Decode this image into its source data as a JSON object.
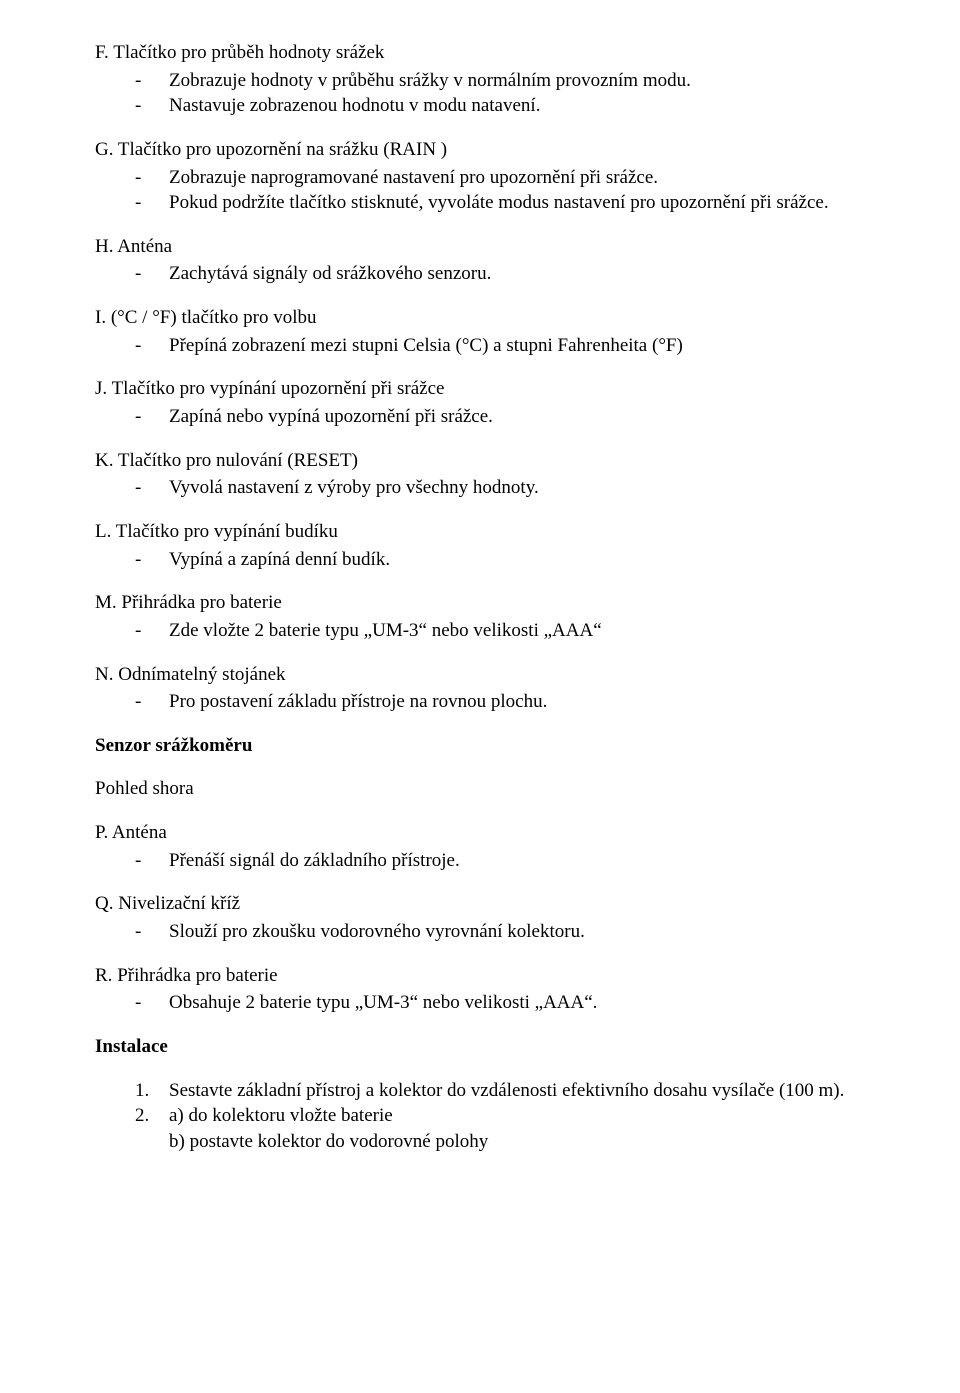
{
  "items": [
    {
      "letter": "F.",
      "title": "Tlačítko pro průběh  hodnoty srážek",
      "bullets": [
        "Zobrazuje hodnoty v průběhu srážky v normálním provozním modu.",
        "Nastavuje zobrazenou hodnotu v modu natavení."
      ]
    },
    {
      "letter": "G.",
      "title": "Tlačítko pro upozornění na srážku (RAIN )",
      "bullets": [
        "Zobrazuje naprogramované nastavení pro upozornění při srážce.",
        "Pokud podržíte tlačítko stisknuté, vyvoláte modus nastavení pro upozornění při srážce."
      ]
    },
    {
      "letter": "H.",
      "title": "Anténa",
      "bullets": [
        "Zachytává signály od srážkového senzoru."
      ]
    },
    {
      "letter": "I.",
      "title": "(°C / °F) tlačítko pro volbu",
      "bullets": [
        "Přepíná zobrazení mezi stupni Celsia (°C) a stupni Fahrenheita (°F)"
      ]
    },
    {
      "letter": "J.",
      "title": "Tlačítko pro vypínání upozornění při srážce",
      "bullets": [
        "Zapíná nebo vypíná upozornění při srážce."
      ]
    },
    {
      "letter": "K.",
      "title": "Tlačítko pro nulování (RESET)",
      "bullets": [
        "Vyvolá nastavení z výroby pro všechny hodnoty."
      ]
    },
    {
      "letter": "L.",
      "title": "Tlačítko pro vypínání budíku",
      "bullets": [
        "Vypíná a zapíná denní budík."
      ]
    },
    {
      "letter": "M.",
      "title": "Přihrádka pro baterie",
      "bullets": [
        "Zde vložte 2 baterie typu „UM-3“ nebo velikosti „AAA“"
      ]
    },
    {
      "letter": "N.",
      "title": "Odnímatelný stojánek",
      "bullets": [
        "Pro postavení základu přístroje na rovnou plochu."
      ]
    }
  ],
  "sensor_heading": "Senzor srážkoměru",
  "view_top": "Pohled shora",
  "items2": [
    {
      "letter": "P.",
      "title": "Anténa",
      "bullets": [
        "Přenáší signál do základního přístroje."
      ]
    },
    {
      "letter": "Q.",
      "title": "Nivelizační kříž",
      "bullets": [
        "Slouží pro zkoušku vodorovného vyrovnání kolektoru."
      ]
    },
    {
      "letter": "R.",
      "title": "Přihrádka pro baterie",
      "bullets": [
        "Obsahuje 2 baterie typu „UM-3“ nebo velikosti „AAA“."
      ]
    }
  ],
  "install_heading": "Instalace",
  "install_steps": {
    "n1": "1.",
    "s1": "Sestavte základní přístroj a kolektor do vzdálenosti efektivního dosahu vysílače (100 m).",
    "n2": "2.",
    "s2a": "a) do kolektoru vložte baterie",
    "s2b": "b) postavte kolektor do vodorovné polohy"
  }
}
